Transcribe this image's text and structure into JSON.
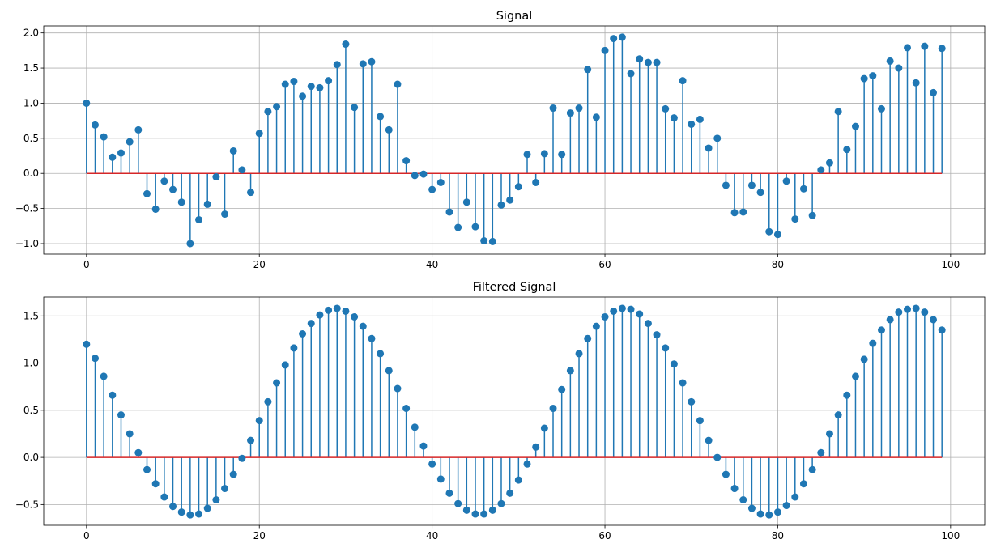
{
  "chart_data": [
    {
      "type": "stem",
      "title": "Signal",
      "xlabel": "",
      "ylabel": "",
      "xlim": [
        -4.95,
        103.95
      ],
      "ylim": [
        -1.15,
        2.1
      ],
      "xticks": [
        0,
        20,
        40,
        60,
        80,
        100
      ],
      "xtick_labels": [
        "0",
        "20",
        "40",
        "60",
        "80",
        "100"
      ],
      "yticks": [
        -1.0,
        -0.5,
        0.0,
        0.5,
        1.0,
        1.5,
        2.0
      ],
      "ytick_labels": [
        "−1.0",
        "−0.5",
        "0.0",
        "0.5",
        "1.0",
        "1.5",
        "2.0"
      ],
      "grid": true,
      "baseline": 0,
      "stem_color": "#1f77b4",
      "baseline_color": "#d62728",
      "x_start": 0,
      "x_step": 1,
      "values": [
        1.0,
        0.69,
        0.52,
        0.23,
        0.29,
        0.45,
        0.62,
        -0.29,
        -0.51,
        -0.11,
        -0.23,
        -0.41,
        -1.0,
        -0.66,
        -0.44,
        -0.05,
        -0.58,
        0.32,
        0.05,
        -0.27,
        0.57,
        0.88,
        0.95,
        1.27,
        1.31,
        1.1,
        1.24,
        1.22,
        1.32,
        1.55,
        1.84,
        0.94,
        1.56,
        1.59,
        0.81,
        0.62,
        1.27,
        0.18,
        -0.03,
        -0.01,
        -0.23,
        -0.13,
        -0.55,
        -0.77,
        -0.41,
        -0.76,
        -0.96,
        -0.97,
        -0.45,
        -0.38,
        -0.19,
        0.27,
        -0.13,
        0.28,
        0.93,
        0.27,
        0.86,
        0.93,
        1.48,
        0.8,
        1.75,
        1.92,
        1.94,
        1.42,
        1.63,
        1.58,
        1.58,
        0.92,
        0.79,
        1.32,
        0.7,
        0.77,
        0.36,
        0.5,
        -0.17,
        -0.56,
        -0.55,
        -0.17,
        -0.27,
        -0.83,
        -0.87,
        -0.11,
        -0.65,
        -0.22,
        -0.6,
        0.05,
        0.15,
        0.88,
        0.34,
        0.67,
        1.35,
        1.39,
        0.92,
        1.6,
        1.5,
        1.79,
        1.29,
        1.81,
        1.15,
        1.78
      ]
    },
    {
      "type": "stem",
      "title": "Filtered Signal",
      "xlabel": "",
      "ylabel": "",
      "xlim": [
        -4.95,
        103.95
      ],
      "ylim": [
        -0.72,
        1.7
      ],
      "xticks": [
        0,
        20,
        40,
        60,
        80,
        100
      ],
      "xtick_labels": [
        "0",
        "20",
        "40",
        "60",
        "80",
        "100"
      ],
      "yticks": [
        -0.5,
        0.0,
        0.5,
        1.0,
        1.5
      ],
      "ytick_labels": [
        "−0.5",
        "0.0",
        "0.5",
        "1.0",
        "1.5"
      ],
      "grid": true,
      "baseline": 0,
      "stem_color": "#1f77b4",
      "baseline_color": "#d62728",
      "x_start": 0,
      "x_step": 1,
      "values": [
        1.2,
        1.05,
        0.86,
        0.66,
        0.45,
        0.25,
        0.05,
        -0.13,
        -0.28,
        -0.42,
        -0.52,
        -0.58,
        -0.61,
        -0.6,
        -0.54,
        -0.45,
        -0.33,
        -0.18,
        -0.01,
        0.18,
        0.39,
        0.59,
        0.79,
        0.98,
        1.16,
        1.31,
        1.42,
        1.51,
        1.56,
        1.58,
        1.55,
        1.49,
        1.39,
        1.26,
        1.1,
        0.92,
        0.73,
        0.52,
        0.32,
        0.12,
        -0.07,
        -0.23,
        -0.38,
        -0.49,
        -0.56,
        -0.6,
        -0.6,
        -0.56,
        -0.49,
        -0.38,
        -0.24,
        -0.07,
        0.11,
        0.31,
        0.52,
        0.72,
        0.92,
        1.1,
        1.26,
        1.39,
        1.49,
        1.55,
        1.58,
        1.57,
        1.52,
        1.42,
        1.3,
        1.16,
        0.99,
        0.79,
        0.59,
        0.39,
        0.18,
        0.0,
        -0.18,
        -0.33,
        -0.45,
        -0.54,
        -0.6,
        -0.61,
        -0.58,
        -0.51,
        -0.42,
        -0.28,
        -0.13,
        0.05,
        0.25,
        0.45,
        0.66,
        0.86,
        1.04,
        1.21,
        1.35,
        1.46,
        1.54,
        1.57,
        1.58,
        1.54,
        1.46,
        1.35
      ]
    }
  ]
}
